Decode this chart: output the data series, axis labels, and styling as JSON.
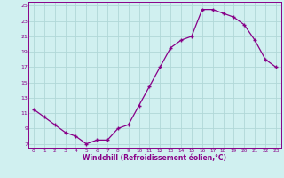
{
  "x": [
    0,
    1,
    2,
    3,
    4,
    5,
    6,
    7,
    8,
    9,
    10,
    11,
    12,
    13,
    14,
    15,
    16,
    17,
    18,
    19,
    20,
    21,
    22,
    23
  ],
  "y": [
    11.5,
    10.5,
    9.5,
    8.5,
    8.0,
    7.0,
    7.5,
    7.5,
    9.0,
    9.5,
    12.0,
    14.5,
    17.0,
    19.5,
    20.5,
    21.0,
    24.5,
    24.5,
    24.0,
    23.5,
    22.5,
    20.5,
    18.0,
    17.0
  ],
  "line_color": "#880088",
  "marker": "+",
  "bg_color": "#d0f0f0",
  "grid_color": "#b0d8d8",
  "xlabel": "Windchill (Refroidissement éolien,°C)",
  "xlabel_color": "#880088",
  "tick_color": "#880088",
  "axis_color": "#880088",
  "ylim": [
    6.5,
    25.5
  ],
  "yticks": [
    7,
    9,
    11,
    13,
    15,
    17,
    19,
    21,
    23,
    25
  ],
  "xticks": [
    0,
    1,
    2,
    3,
    4,
    5,
    6,
    7,
    8,
    9,
    10,
    11,
    12,
    13,
    14,
    15,
    16,
    17,
    18,
    19,
    20,
    21,
    22,
    23
  ],
  "xlim": [
    -0.5,
    23.5
  ]
}
